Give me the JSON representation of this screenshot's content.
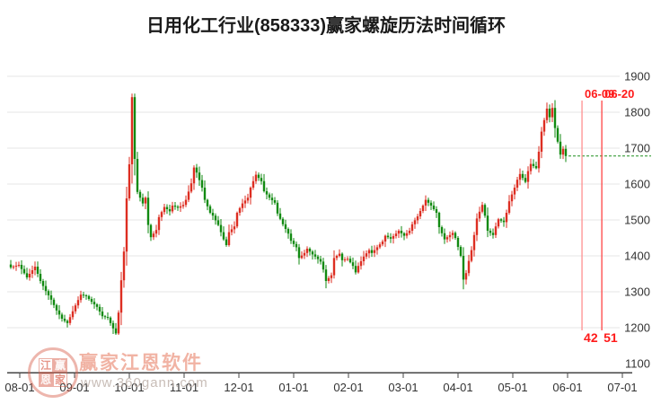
{
  "title": "日用化工行业(858333)赢家螺旋历法时间循环",
  "watermark": {
    "brand": "赢家江恩软件",
    "url": "www.360gann.com",
    "logo_chars": [
      "江",
      "赢",
      "恩",
      "家"
    ]
  },
  "chart_data": {
    "type": "candlestick",
    "title": "日用化工行业(858333)赢家螺旋历法时间循环",
    "x_tick_labels": [
      "08-01",
      "09-01",
      "10-01",
      "11-01",
      "12-01",
      "01-01",
      "02-01",
      "03-01",
      "04-01",
      "05-01",
      "06-01",
      "07-01"
    ],
    "y_tick_labels": [
      1900,
      1800,
      1700,
      1600,
      1500,
      1400,
      1300,
      1200,
      1100
    ],
    "ylim": [
      1100,
      1900
    ],
    "grid": true,
    "up_color": "#dd2e22",
    "down_color": "#118a11",
    "grid_color": "#e4e4e4",
    "axis_color": "#444444",
    "label_color": "#333333",
    "candle_count": 207,
    "close_path_anchors": [
      [
        0,
        1368
      ],
      [
        3,
        1375
      ],
      [
        6,
        1340
      ],
      [
        9,
        1370
      ],
      [
        11,
        1330
      ],
      [
        13,
        1302
      ],
      [
        15,
        1278
      ],
      [
        17,
        1248
      ],
      [
        19,
        1225
      ],
      [
        21,
        1213
      ],
      [
        24,
        1262
      ],
      [
        26,
        1292
      ],
      [
        28,
        1288
      ],
      [
        30,
        1272
      ],
      [
        32,
        1258
      ],
      [
        34,
        1232
      ],
      [
        36,
        1228
      ],
      [
        38,
        1198
      ],
      [
        39,
        1184
      ],
      [
        40,
        1242
      ],
      [
        41,
        1332
      ],
      [
        42,
        1412
      ],
      [
        43,
        1560
      ],
      [
        44,
        1655
      ],
      [
        45,
        1842
      ],
      [
        46,
        1670
      ],
      [
        47,
        1578
      ],
      [
        49,
        1546
      ],
      [
        50,
        1562
      ],
      [
        51,
        1486
      ],
      [
        52,
        1452
      ],
      [
        54,
        1472
      ],
      [
        55,
        1508
      ],
      [
        57,
        1536
      ],
      [
        59,
        1524
      ],
      [
        60,
        1540
      ],
      [
        62,
        1534
      ],
      [
        64,
        1542
      ],
      [
        65,
        1556
      ],
      [
        67,
        1602
      ],
      [
        68,
        1646
      ],
      [
        69,
        1632
      ],
      [
        71,
        1590
      ],
      [
        72,
        1556
      ],
      [
        74,
        1520
      ],
      [
        75,
        1512
      ],
      [
        77,
        1486
      ],
      [
        79,
        1446
      ],
      [
        80,
        1430
      ],
      [
        81,
        1466
      ],
      [
        83,
        1482
      ],
      [
        84,
        1520
      ],
      [
        86,
        1546
      ],
      [
        88,
        1562
      ],
      [
        89,
        1590
      ],
      [
        91,
        1626
      ],
      [
        93,
        1608
      ],
      [
        94,
        1580
      ],
      [
        96,
        1562
      ],
      [
        98,
        1548
      ],
      [
        99,
        1518
      ],
      [
        101,
        1488
      ],
      [
        103,
        1462
      ],
      [
        104,
        1442
      ],
      [
        106,
        1424
      ],
      [
        107,
        1394
      ],
      [
        109,
        1408
      ],
      [
        110,
        1420
      ],
      [
        112,
        1404
      ],
      [
        113,
        1398
      ],
      [
        115,
        1384
      ],
      [
        116,
        1362
      ],
      [
        117,
        1330
      ],
      [
        119,
        1346
      ],
      [
        120,
        1394
      ],
      [
        122,
        1406
      ],
      [
        123,
        1388
      ],
      [
        125,
        1392
      ],
      [
        127,
        1372
      ],
      [
        128,
        1354
      ],
      [
        129,
        1372
      ],
      [
        131,
        1398
      ],
      [
        133,
        1416
      ],
      [
        134,
        1408
      ],
      [
        136,
        1424
      ],
      [
        138,
        1440
      ],
      [
        139,
        1456
      ],
      [
        141,
        1448
      ],
      [
        143,
        1462
      ],
      [
        144,
        1470
      ],
      [
        146,
        1456
      ],
      [
        148,
        1470
      ],
      [
        149,
        1488
      ],
      [
        151,
        1510
      ],
      [
        153,
        1540
      ],
      [
        154,
        1556
      ],
      [
        156,
        1540
      ],
      [
        158,
        1520
      ],
      [
        159,
        1480
      ],
      [
        161,
        1446
      ],
      [
        162,
        1452
      ],
      [
        164,
        1464
      ],
      [
        165,
        1450
      ],
      [
        167,
        1400
      ],
      [
        168,
        1334
      ],
      [
        169,
        1352
      ],
      [
        170,
        1386
      ],
      [
        171,
        1416
      ],
      [
        172,
        1458
      ],
      [
        173,
        1504
      ],
      [
        175,
        1542
      ],
      [
        176,
        1512
      ],
      [
        177,
        1470
      ],
      [
        179,
        1458
      ],
      [
        180,
        1482
      ],
      [
        181,
        1502
      ],
      [
        183,
        1494
      ],
      [
        184,
        1520
      ],
      [
        185,
        1552
      ],
      [
        187,
        1590
      ],
      [
        188,
        1612
      ],
      [
        189,
        1628
      ],
      [
        191,
        1606
      ],
      [
        192,
        1636
      ],
      [
        193,
        1656
      ],
      [
        195,
        1644
      ],
      [
        196,
        1690
      ],
      [
        197,
        1746
      ],
      [
        199,
        1810
      ],
      [
        200,
        1786
      ],
      [
        201,
        1812
      ],
      [
        202,
        1756
      ],
      [
        203,
        1718
      ],
      [
        204,
        1682
      ],
      [
        205,
        1698
      ],
      [
        206,
        1678
      ]
    ],
    "high_peak": 1852,
    "low_trough": 1180,
    "reference_hline": {
      "price": 1678,
      "style": "dashed",
      "color": "#1f8f1f"
    },
    "cycle_lines": [
      {
        "label": "06-09",
        "bottom_label": "42",
        "color": "#ff9090"
      },
      {
        "label": "06-20",
        "bottom_label": "51",
        "color": "#ff4444"
      }
    ],
    "legend_position": "none"
  }
}
